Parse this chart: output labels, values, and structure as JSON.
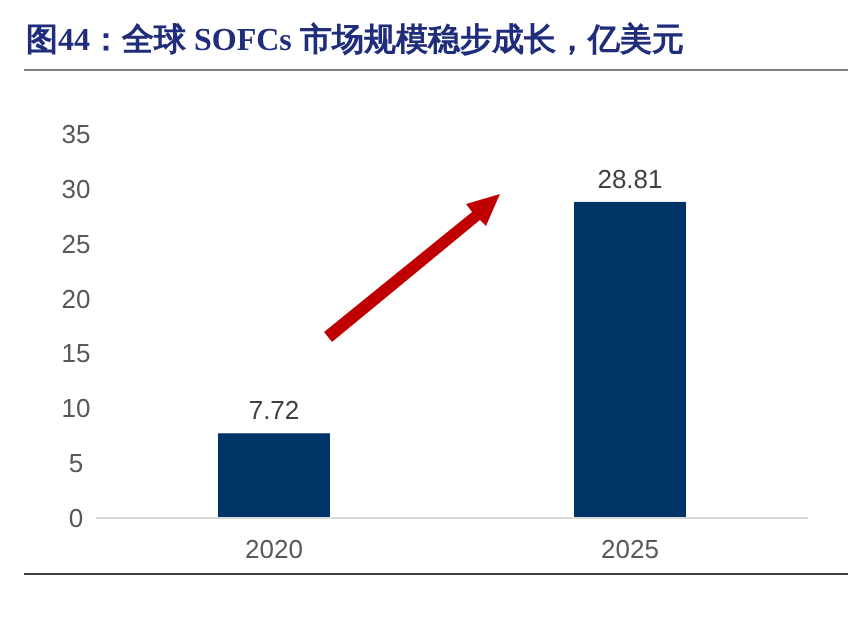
{
  "chart_data": {
    "type": "bar",
    "title": "图44：全球 SOFCs 市场规模稳步成长，亿美元",
    "categories": [
      "2020",
      "2025"
    ],
    "values": [
      7.72,
      28.81
    ],
    "color": "#003366",
    "data_labels": true,
    "ylim": [
      0,
      35
    ],
    "yticks": [
      0,
      5,
      10,
      15,
      20,
      25,
      30,
      35
    ],
    "grid": false
  }
}
